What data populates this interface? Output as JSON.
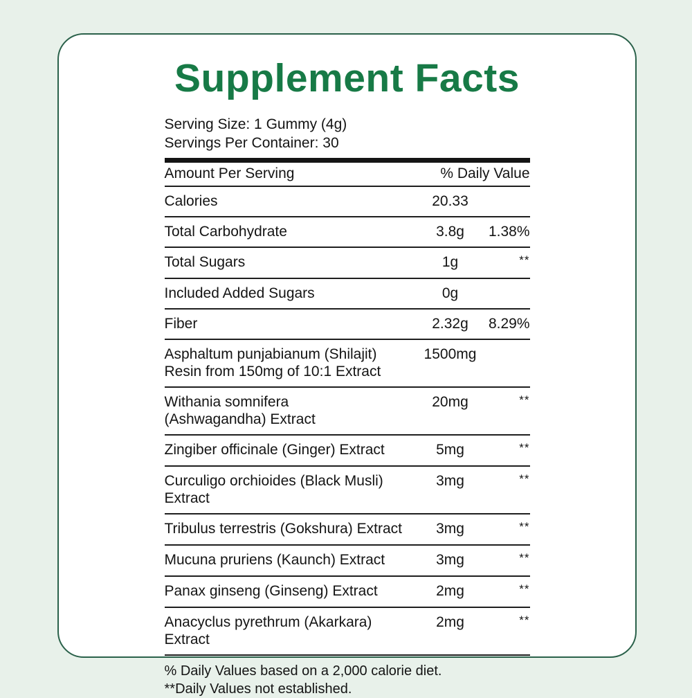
{
  "title": "Supplement Facts",
  "serving": {
    "size_label": "Serving Size: 1 Gummy (4g)",
    "per_container_label": "Servings Per Container: 30"
  },
  "table": {
    "header": {
      "amount_col": "Amount Per Serving",
      "dv_col": "% Daily Value"
    },
    "rows": [
      {
        "name": "Calories",
        "amount": "20.33",
        "dv": ""
      },
      {
        "name": "Total Carbohydrate",
        "amount": "3.8g",
        "dv": "1.38%"
      },
      {
        "name": "Total Sugars",
        "amount": "1g",
        "dv": "**"
      },
      {
        "name": "Included Added Sugars",
        "amount": "0g",
        "dv": ""
      },
      {
        "name": "Fiber",
        "amount": "2.32g",
        "dv": "8.29%"
      },
      {
        "name": "Asphaltum punjabianum (Shilajit)",
        "name_line2": "Resin from 150mg of 10:1 Extract",
        "amount": "1500mg",
        "dv": ""
      },
      {
        "name": "Withania somnifera",
        "name_line2": "(Ashwagandha) Extract",
        "amount": "20mg",
        "dv": "**"
      },
      {
        "name": "Zingiber officinale (Ginger) Extract",
        "amount": "5mg",
        "dv": "**"
      },
      {
        "name": "Curculigo orchioides (Black Musli) Extract",
        "amount": "3mg",
        "dv": "**"
      },
      {
        "name": "Tribulus terrestris (Gokshura) Extract",
        "amount": "3mg",
        "dv": "**"
      },
      {
        "name": "Mucuna pruriens (Kaunch) Extract",
        "amount": "3mg",
        "dv": "**"
      },
      {
        "name": "Panax ginseng (Ginseng) Extract",
        "amount": "2mg",
        "dv": "**"
      },
      {
        "name": "Anacyclus pyrethrum (Akarkara) Extract",
        "amount": "2mg",
        "dv": "**"
      }
    ]
  },
  "footnotes": {
    "line1": "% Daily Values based on a 2,000 calorie diet.",
    "line2": "**Daily Values not established."
  },
  "colors": {
    "accent_green": "#177a46",
    "border_green": "#2a614a",
    "background_mint": "#e8f1ea",
    "line_dark": "#1e1e1e"
  }
}
